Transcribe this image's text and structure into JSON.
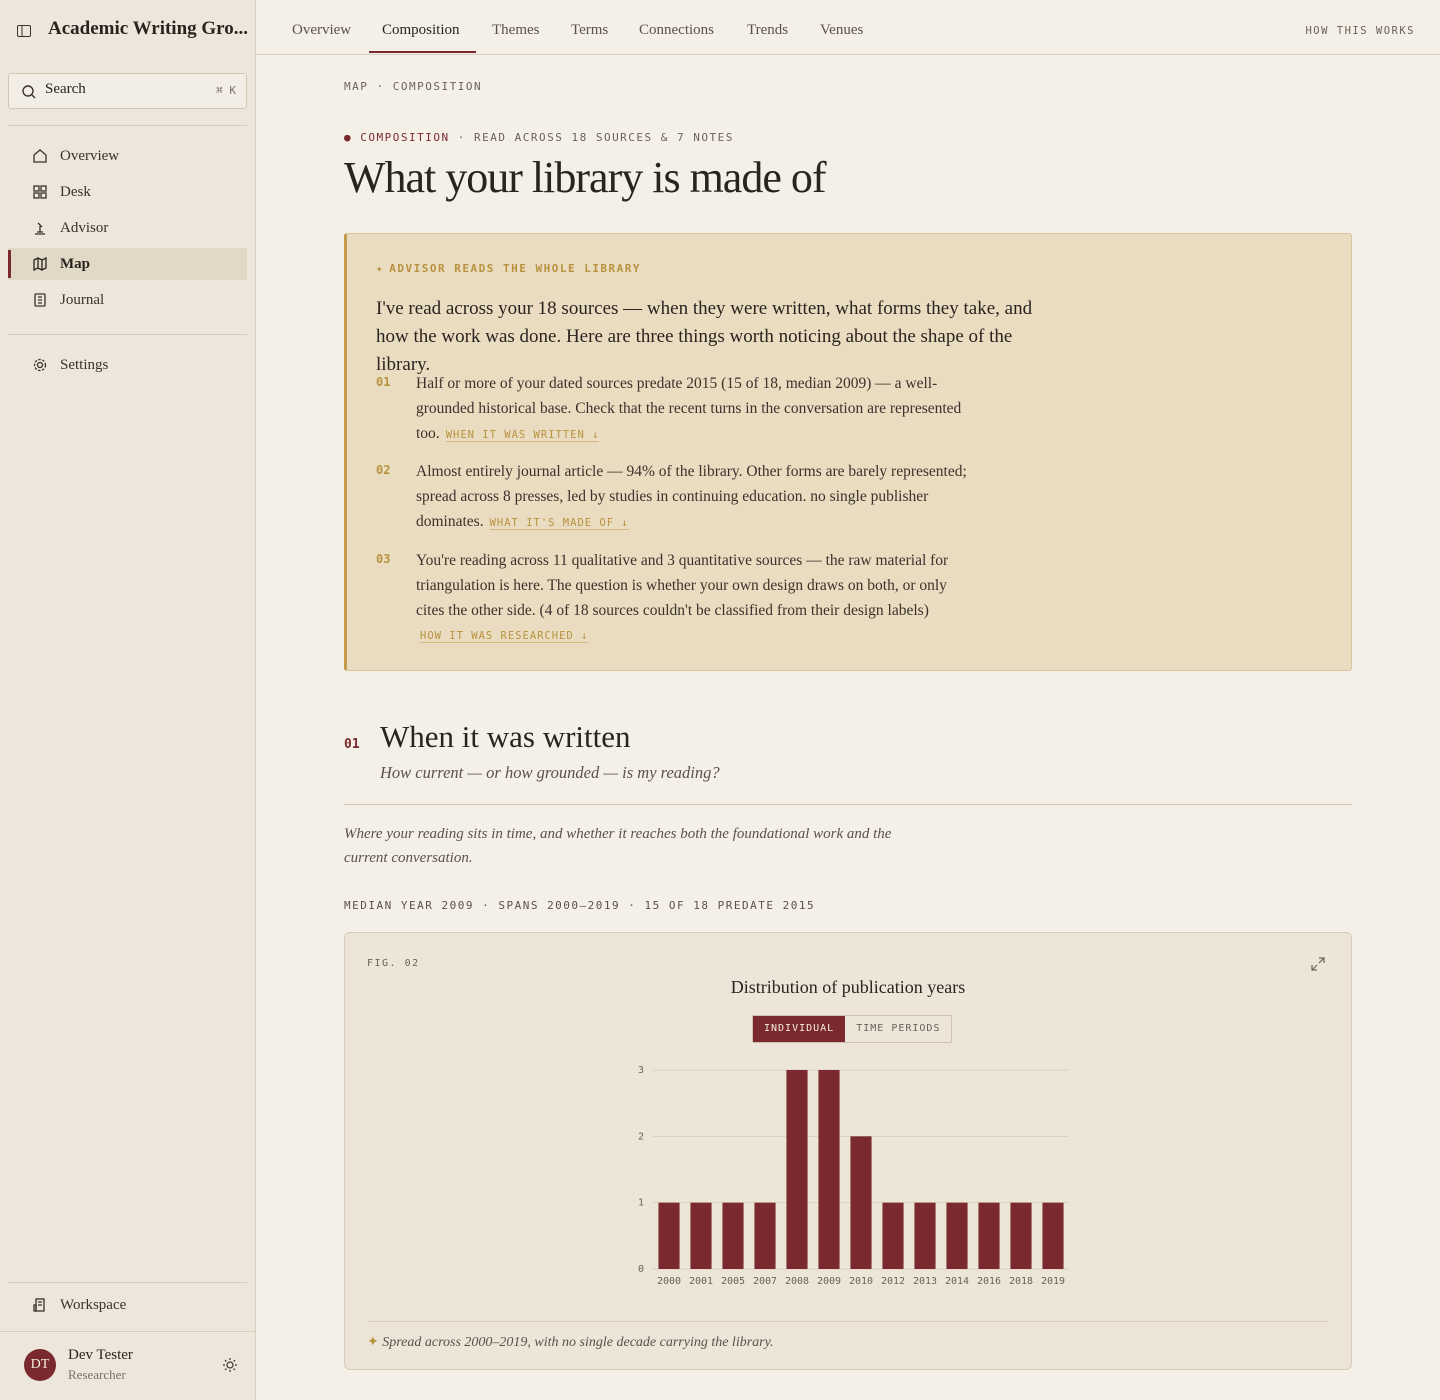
{
  "sidebar": {
    "workspace_title": "Academic Writing Gro...",
    "search": "Search",
    "shortcut": "⌘ K",
    "nav": [
      "Overview",
      "Desk",
      "Advisor",
      "Map",
      "Journal"
    ],
    "settings": "Settings",
    "workspace": "Workspace",
    "user": {
      "initials": "DT",
      "name": "Dev Tester",
      "role": "Researcher"
    }
  },
  "tabs": [
    "Overview",
    "Composition",
    "Themes",
    "Terms",
    "Connections",
    "Trends",
    "Venues"
  ],
  "help": "HOW THIS WORKS",
  "breadcrumb": "MAP · COMPOSITION",
  "eyebrow": {
    "tag": "COMPOSITION",
    "meta": "· READ ACROSS 18 SOURCES & 7 NOTES"
  },
  "title": "What your library is made of",
  "advisor": {
    "label": "ADVISOR READS THE WHOLE LIBRARY",
    "intro": "I've read across your 18 sources — when they were written, what forms they take, and how the work was done. Here are three things worth noticing about the shape of the library.",
    "items": [
      {
        "num": "01",
        "text": "Half or more of your dated sources predate 2015 (15 of 18, median 2009) — a well-grounded historical base. Check that the recent turns in the conversation are represented too.",
        "link": "WHEN IT WAS WRITTEN ↓"
      },
      {
        "num": "02",
        "text": "Almost entirely journal article — 94% of the library. Other forms are barely represented; spread across 8 presses, led by studies in continuing education. no single publisher dominates.",
        "link": "WHAT IT'S MADE OF ↓"
      },
      {
        "num": "03",
        "text": "You're reading across 11 qualitative and 3 quantitative sources — the raw material for triangulation is here. The question is whether your own design draws on both, or only cites the other side. (4 of 18 sources couldn't be classified from their design labels)",
        "link": "HOW IT WAS RESEARCHED ↓"
      }
    ]
  },
  "section": {
    "num": "01",
    "title": "When it was written",
    "question": "How current — or how grounded — is my reading?",
    "description": "Where your reading sits in time, and whether it reaches both the foundational work and the current conversation.",
    "stats": "MEDIAN YEAR 2009 · SPANS 2000–2019 · 15 OF 18 PREDATE 2015"
  },
  "figure": {
    "label": "FIG. 02",
    "toggle": [
      "INDIVIDUAL",
      "TIME PERIODS"
    ],
    "caption": "Spread across 2000–2019, with no single decade carrying the library."
  },
  "chart_data": {
    "type": "bar",
    "title": "Distribution of publication years",
    "categories": [
      "2000",
      "2001",
      "2005",
      "2007",
      "2008",
      "2009",
      "2010",
      "2012",
      "2013",
      "2014",
      "2016",
      "2018",
      "2019"
    ],
    "values": [
      1,
      1,
      1,
      1,
      3,
      3,
      2,
      1,
      1,
      1,
      1,
      1,
      1
    ],
    "color": "#7a2a2e",
    "ylim": [
      0,
      3
    ],
    "yticks": [
      0,
      1,
      2,
      3
    ],
    "grid": true
  }
}
